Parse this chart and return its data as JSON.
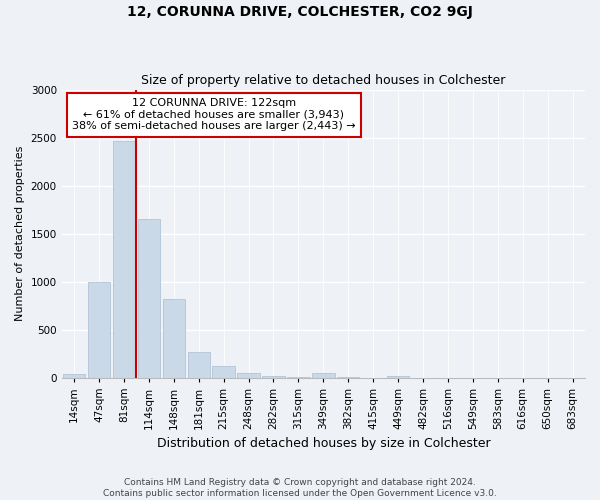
{
  "title": "12, CORUNNA DRIVE, COLCHESTER, CO2 9GJ",
  "subtitle": "Size of property relative to detached houses in Colchester",
  "xlabel": "Distribution of detached houses by size in Colchester",
  "ylabel": "Number of detached properties",
  "bar_labels": [
    "14sqm",
    "47sqm",
    "81sqm",
    "114sqm",
    "148sqm",
    "181sqm",
    "215sqm",
    "248sqm",
    "282sqm",
    "315sqm",
    "349sqm",
    "382sqm",
    "415sqm",
    "449sqm",
    "482sqm",
    "516sqm",
    "549sqm",
    "583sqm",
    "616sqm",
    "650sqm",
    "683sqm"
  ],
  "bar_values": [
    40,
    990,
    2460,
    1650,
    820,
    270,
    115,
    45,
    12,
    5,
    50,
    5,
    0,
    20,
    0,
    0,
    0,
    0,
    0,
    0,
    0
  ],
  "bar_color": "#c9d9e8",
  "bar_edge_color": "#b0c4d8",
  "vline_color": "#cc0000",
  "ylim": [
    0,
    3000
  ],
  "yticks": [
    0,
    500,
    1000,
    1500,
    2000,
    2500,
    3000
  ],
  "annotation_box_text": "12 CORUNNA DRIVE: 122sqm\n← 61% of detached houses are smaller (3,943)\n38% of semi-detached houses are larger (2,443) →",
  "annotation_box_color": "#ffffff",
  "annotation_box_edge_color": "#cc0000",
  "footer_line1": "Contains HM Land Registry data © Crown copyright and database right 2024.",
  "footer_line2": "Contains public sector information licensed under the Open Government Licence v3.0.",
  "background_color": "#eef2f7",
  "grid_color": "#ffffff",
  "title_fontsize": 10,
  "subtitle_fontsize": 9,
  "annotation_fontsize": 8,
  "ylabel_fontsize": 8,
  "xlabel_fontsize": 9,
  "tick_fontsize": 7.5,
  "footer_fontsize": 6.5
}
